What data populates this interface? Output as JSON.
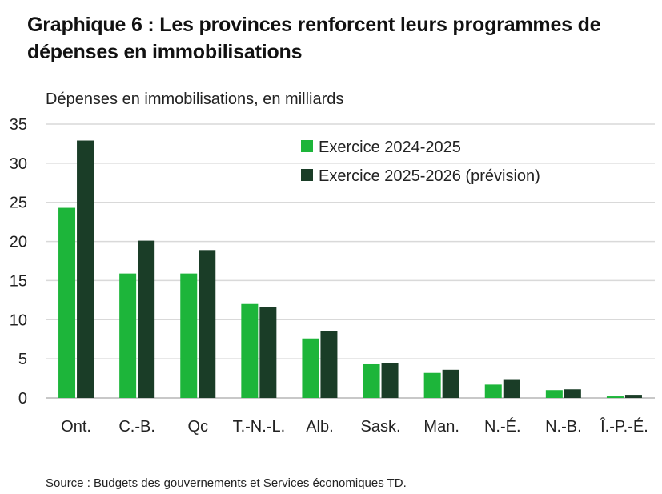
{
  "chart_data": {
    "type": "bar",
    "title": "Graphique 6 : Les provinces renforcent leurs programmes de dépenses en immobilisations",
    "ylabel": "Dépenses en immobilisations, en milliards",
    "xlabel": "",
    "ylim": [
      0,
      35
    ],
    "yticks": [
      0,
      5,
      10,
      15,
      20,
      25,
      30,
      35
    ],
    "grid": true,
    "legend_position": "top-right",
    "categories": [
      "Ont.",
      "C.-B.",
      "Qc",
      "T.-N.-L.",
      "Alb.",
      "Sask.",
      "Man.",
      "N.-É.",
      "N.-B.",
      "Î.-P.-É."
    ],
    "series": [
      {
        "name": "Exercice 2024-2025",
        "color": "#1db53a",
        "values": [
          24.3,
          15.9,
          15.9,
          12.0,
          7.6,
          4.3,
          3.2,
          1.7,
          1.0,
          0.2
        ]
      },
      {
        "name": "Exercice 2025-2026 (prévision)",
        "color": "#1a3d27",
        "values": [
          32.9,
          20.1,
          18.9,
          11.6,
          8.5,
          4.5,
          3.6,
          2.4,
          1.1,
          0.4
        ]
      }
    ],
    "source": "Source : Budgets des gouvernements et Services économiques TD."
  }
}
